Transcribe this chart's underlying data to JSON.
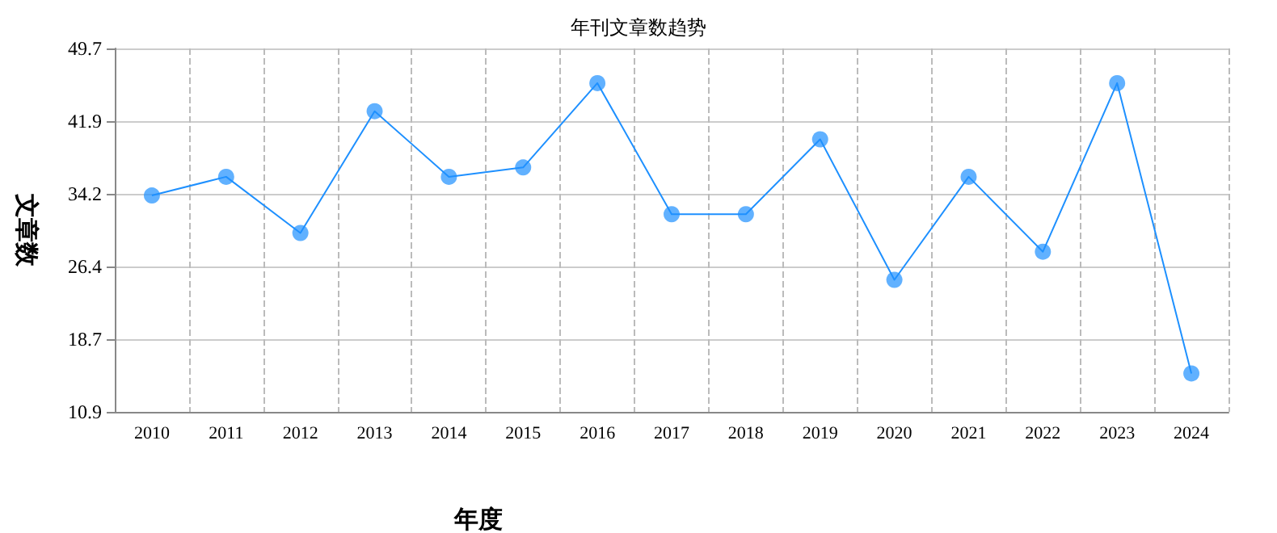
{
  "chart_data": {
    "type": "line",
    "title": "年刊文章数趋势",
    "xlabel": "年度",
    "ylabel": "文章数",
    "categories": [
      "2010",
      "2011",
      "2012",
      "2013",
      "2014",
      "2015",
      "2016",
      "2017",
      "2018",
      "2019",
      "2020",
      "2021",
      "2022",
      "2023",
      "2024"
    ],
    "series": [
      {
        "color": "#1e90ff",
        "values": [
          34,
          36,
          30,
          43,
          36,
          37,
          46,
          32,
          32,
          40,
          25,
          36,
          28,
          46,
          15
        ]
      }
    ],
    "ylim": [
      10.9,
      49.7
    ],
    "yticks": [
      10.9,
      18.7,
      26.4,
      34.2,
      41.9,
      49.7
    ],
    "grid": true,
    "marker": "circle",
    "line_style": "solid"
  }
}
